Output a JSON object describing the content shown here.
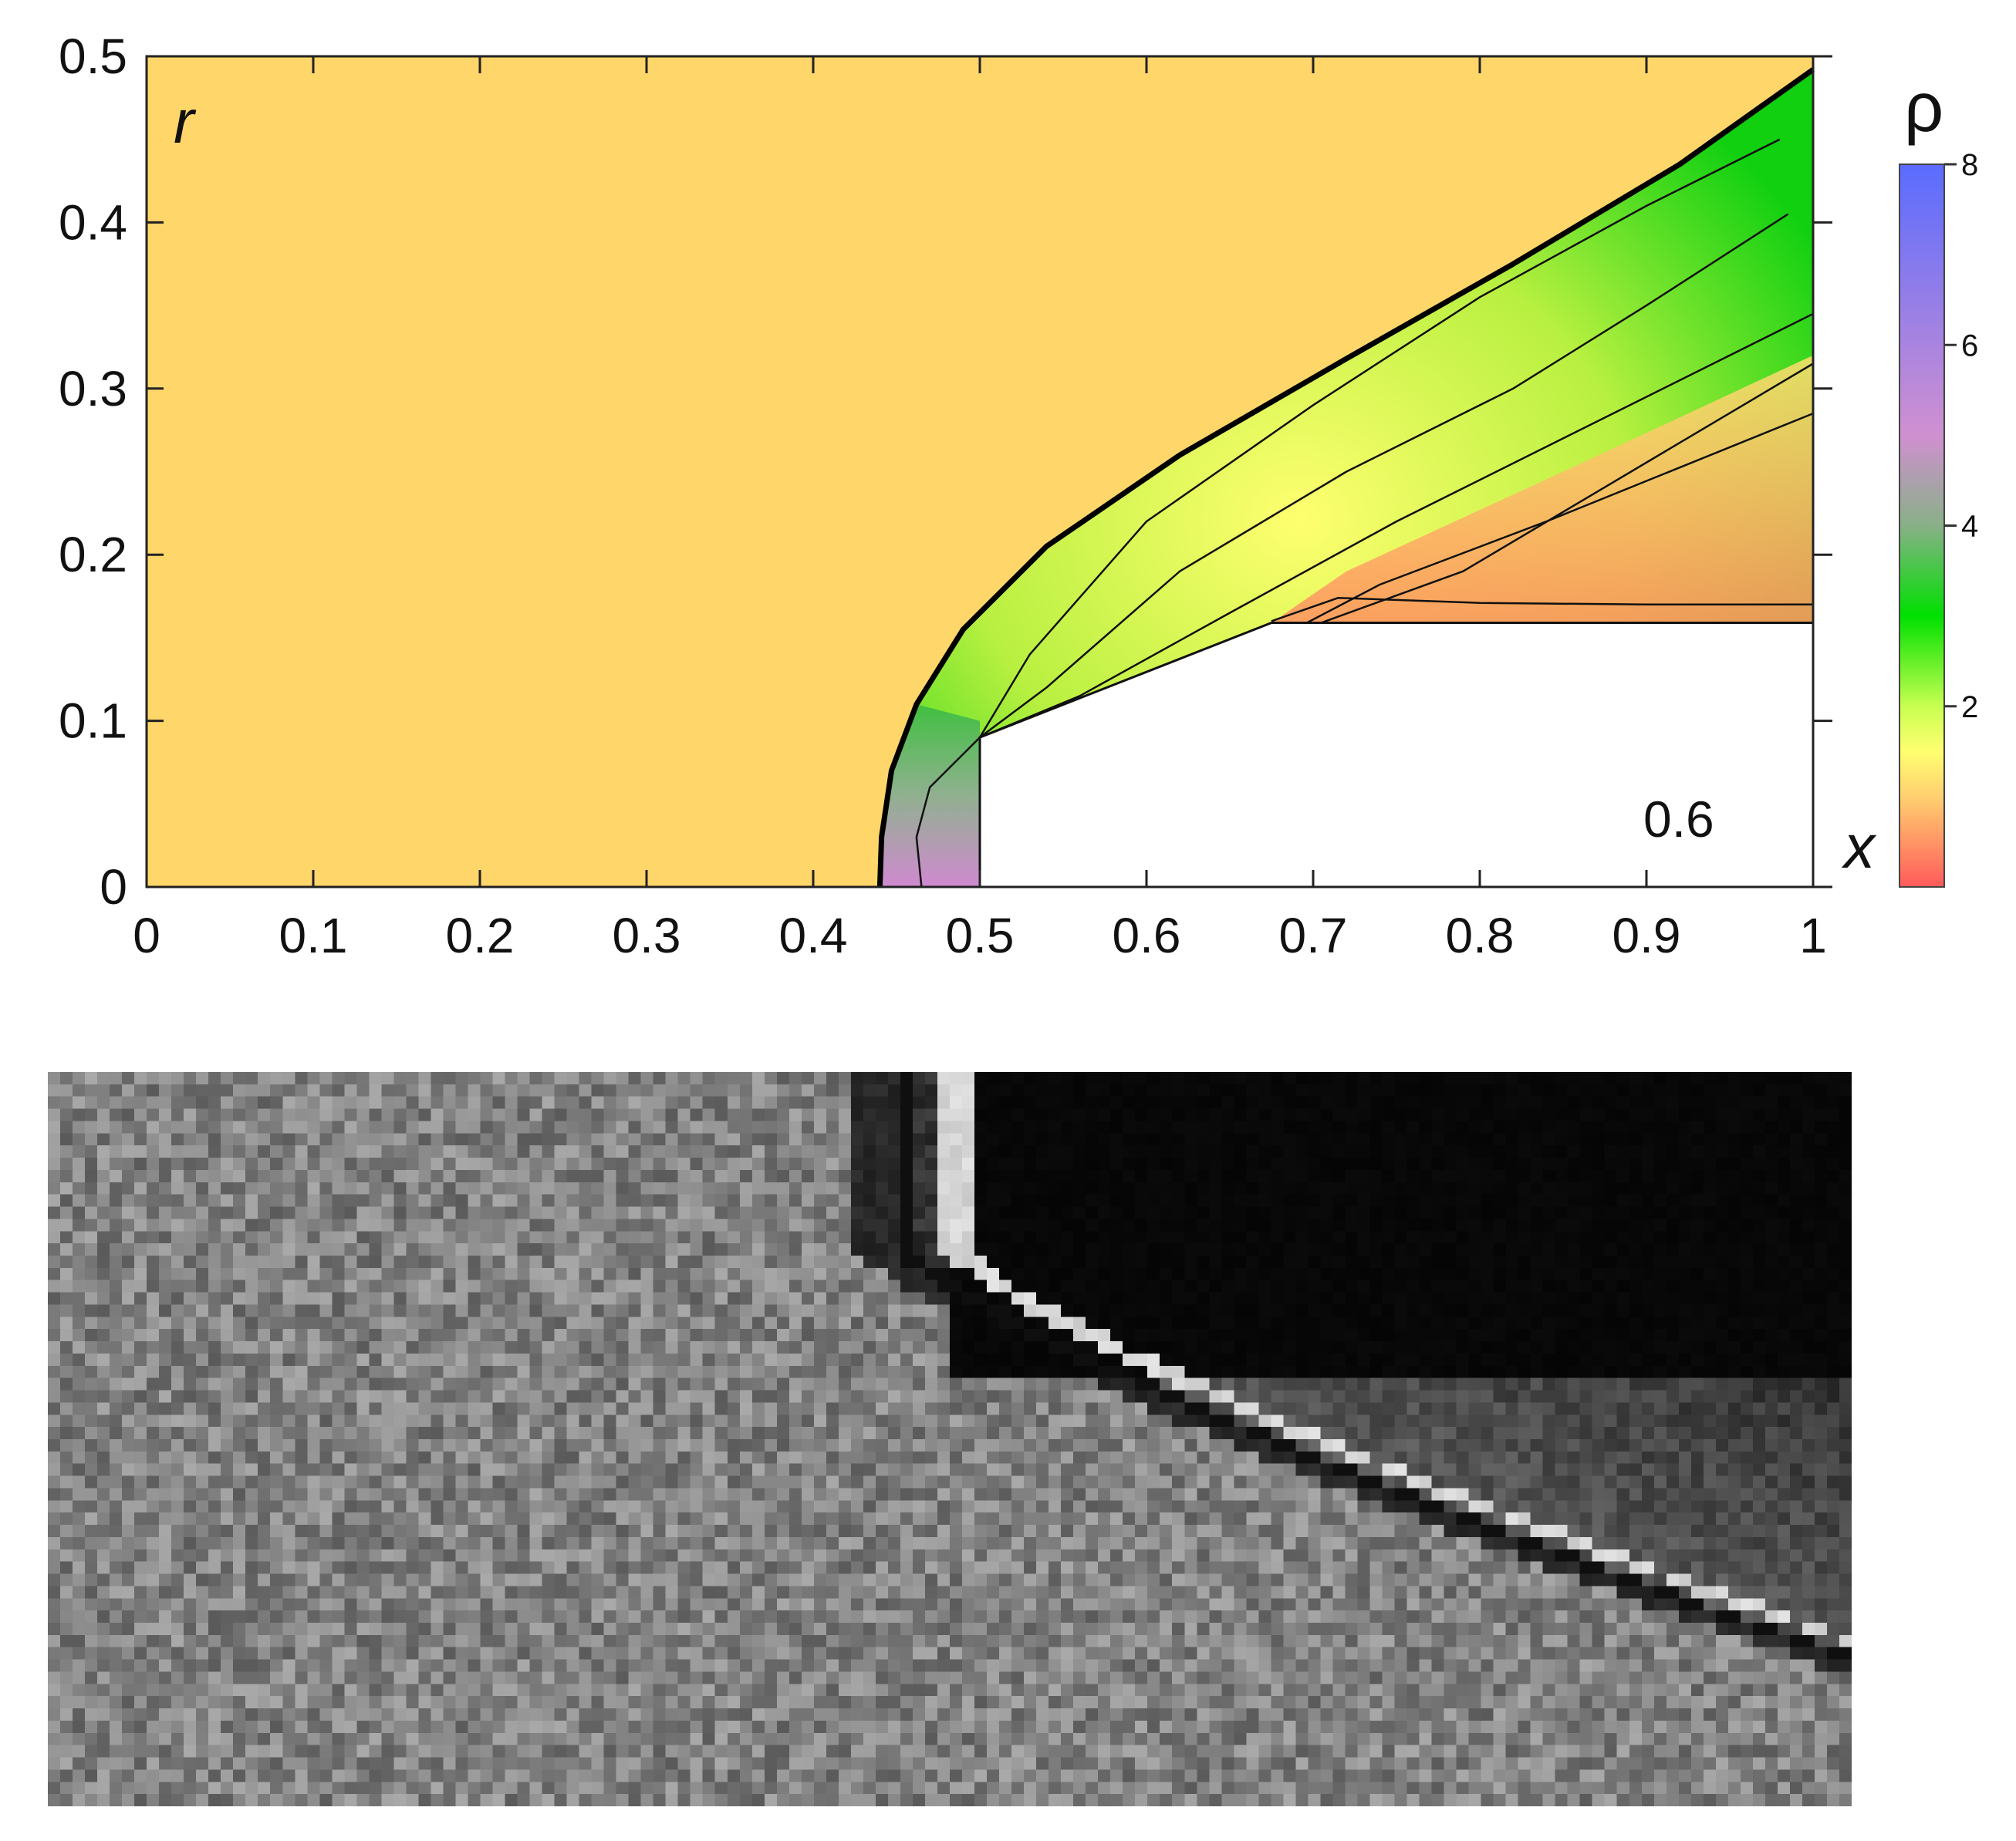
{
  "chart_data": {
    "type": "heatmap",
    "xlabel": "x",
    "ylabel": "r",
    "xlim": [
      0,
      1
    ],
    "ylim": [
      0,
      0.5
    ],
    "x_ticks": [
      "0",
      "0.1",
      "0.2",
      "0.3",
      "0.4",
      "0.5",
      "0.6",
      "0.7",
      "0.8",
      "0.9",
      "1"
    ],
    "y_ticks": [
      "0",
      "0.1",
      "0.2",
      "0.3",
      "0.4",
      "0.5"
    ],
    "annotation": "0.6",
    "colorbar": {
      "label": "ρ",
      "range": [
        0,
        8
      ],
      "ticks": [
        "2",
        "4",
        "6",
        "8"
      ],
      "stops": [
        {
          "value": 0,
          "color": "#ff5a5a"
        },
        {
          "value": 1,
          "color": "#ffd070"
        },
        {
          "value": 1.5,
          "color": "#ffff70"
        },
        {
          "value": 2,
          "color": "#c8ff50"
        },
        {
          "value": 3,
          "color": "#00e000"
        },
        {
          "value": 4,
          "color": "#88b088"
        },
        {
          "value": 5,
          "color": "#d090d0"
        },
        {
          "value": 8,
          "color": "#5a6cff"
        }
      ]
    },
    "background_density_color": "#fed66a",
    "body_contour": [
      [
        0.5,
        0
      ],
      [
        0.5,
        0.09
      ],
      [
        0.675,
        0.159
      ],
      [
        1.0,
        0.159
      ]
    ],
    "bow_shock": [
      [
        0.44,
        0
      ],
      [
        0.441,
        0.03
      ],
      [
        0.447,
        0.07
      ],
      [
        0.462,
        0.11
      ],
      [
        0.49,
        0.155
      ],
      [
        0.54,
        0.205
      ],
      [
        0.62,
        0.26
      ],
      [
        0.72,
        0.318
      ],
      [
        0.82,
        0.375
      ],
      [
        0.92,
        0.435
      ],
      [
        1.0,
        0.492
      ]
    ],
    "isolines": [
      [
        [
          0.5,
          0.09
        ],
        [
          0.53,
          0.14
        ],
        [
          0.6,
          0.22
        ],
        [
          0.7,
          0.29
        ],
        [
          0.8,
          0.355
        ],
        [
          0.9,
          0.41
        ],
        [
          0.98,
          0.45
        ]
      ],
      [
        [
          0.5,
          0.09
        ],
        [
          0.54,
          0.12
        ],
        [
          0.62,
          0.19
        ],
        [
          0.72,
          0.25
        ],
        [
          0.82,
          0.3
        ],
        [
          0.9,
          0.35
        ],
        [
          0.985,
          0.405
        ]
      ],
      [
        [
          0.5,
          0.09
        ],
        [
          0.56,
          0.115
        ],
        [
          0.65,
          0.165
        ],
        [
          0.75,
          0.22
        ],
        [
          0.85,
          0.27
        ],
        [
          1.0,
          0.345
        ]
      ],
      [
        [
          0.5,
          0.09
        ],
        [
          0.58,
          0.113
        ],
        [
          0.66,
          0.14
        ],
        [
          0.74,
          0.182
        ],
        [
          0.84,
          0.22
        ],
        [
          1.0,
          0.285
        ]
      ],
      [
        [
          0.5,
          0.09
        ],
        [
          0.6,
          0.12
        ],
        [
          0.68,
          0.15
        ],
        [
          0.79,
          0.19
        ],
        [
          1.0,
          0.315
        ]
      ],
      [
        [
          0.675,
          0.16
        ],
        [
          0.715,
          0.174
        ],
        [
          0.8,
          0.171
        ],
        [
          0.9,
          0.17
        ],
        [
          1.0,
          0.17
        ]
      ],
      [
        [
          0.5,
          0.09
        ],
        [
          0.488,
          0.078
        ],
        [
          0.47,
          0.06
        ],
        [
          0.462,
          0.03
        ],
        [
          0.465,
          0
        ]
      ]
    ]
  }
}
